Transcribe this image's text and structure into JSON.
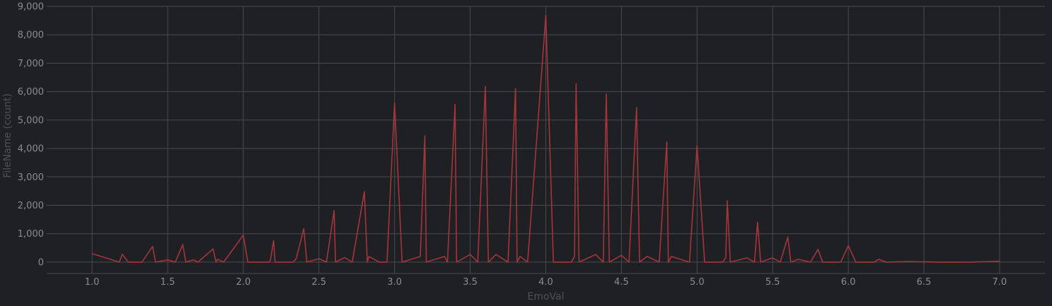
{
  "chart_data": {
    "type": "line",
    "title": "",
    "xlabel": "EmoVal",
    "ylabel": "FileName (count)",
    "xlim": [
      0.7,
      7.3
    ],
    "ylim": [
      -400,
      9000
    ],
    "x_ticks": [
      1.0,
      1.5,
      2.0,
      2.5,
      3.0,
      3.5,
      4.0,
      4.5,
      5.0,
      5.5,
      6.0,
      6.5,
      7.0
    ],
    "x_tick_labels": [
      "1.0",
      "1.5",
      "2.0",
      "2.5",
      "3.0",
      "3.5",
      "4.0",
      "4.5",
      "5.0",
      "5.5",
      "6.0",
      "6.5",
      "7.0"
    ],
    "y_ticks": [
      0,
      1000,
      2000,
      3000,
      4000,
      5000,
      6000,
      7000,
      8000,
      9000
    ],
    "y_tick_labels": [
      "0",
      "1,000",
      "2,000",
      "3,000",
      "4,000",
      "5,000",
      "6,000",
      "7,000",
      "8,000",
      "9,000"
    ],
    "grid": true,
    "series": [
      {
        "color": "#a3353b",
        "x": [
          1.0,
          1.18,
          1.2,
          1.24,
          1.33,
          1.4,
          1.42,
          1.5,
          1.55,
          1.6,
          1.62,
          1.67,
          1.7,
          1.8,
          1.82,
          1.83,
          1.87,
          2.0,
          2.03,
          2.17,
          2.18,
          2.2,
          2.21,
          2.33,
          2.35,
          2.4,
          2.42,
          2.5,
          2.55,
          2.6,
          2.61,
          2.67,
          2.72,
          2.8,
          2.82,
          2.83,
          2.9,
          2.95,
          3.0,
          3.05,
          3.17,
          3.2,
          3.21,
          3.33,
          3.35,
          3.4,
          3.41,
          3.5,
          3.55,
          3.6,
          3.62,
          3.67,
          3.75,
          3.8,
          3.81,
          3.83,
          3.88,
          4.0,
          4.05,
          4.17,
          4.19,
          4.2,
          4.22,
          4.33,
          4.38,
          4.4,
          4.42,
          4.5,
          4.55,
          4.6,
          4.62,
          4.67,
          4.75,
          4.8,
          4.81,
          4.83,
          4.95,
          5.0,
          5.05,
          5.17,
          5.19,
          5.2,
          5.22,
          5.33,
          5.38,
          5.4,
          5.42,
          5.5,
          5.55,
          5.6,
          5.62,
          5.67,
          5.75,
          5.8,
          5.83,
          5.95,
          6.0,
          6.05,
          6.17,
          6.2,
          6.25,
          6.4,
          6.6,
          6.8,
          7.0
        ],
        "values": [
          300,
          0,
          280,
          0,
          0,
          550,
          0,
          80,
          0,
          620,
          0,
          80,
          0,
          460,
          0,
          100,
          0,
          950,
          0,
          0,
          80,
          760,
          0,
          0,
          130,
          1180,
          0,
          120,
          0,
          1810,
          0,
          160,
          0,
          2480,
          0,
          200,
          0,
          0,
          5600,
          0,
          200,
          4440,
          0,
          200,
          0,
          5550,
          0,
          270,
          0,
          6180,
          0,
          270,
          0,
          6100,
          0,
          200,
          0,
          8690,
          0,
          0,
          200,
          6280,
          0,
          270,
          0,
          5920,
          0,
          240,
          0,
          5440,
          0,
          200,
          0,
          4230,
          0,
          200,
          0,
          4100,
          0,
          0,
          160,
          2160,
          0,
          150,
          0,
          1400,
          0,
          150,
          0,
          880,
          0,
          100,
          0,
          450,
          0,
          0,
          580,
          0,
          0,
          100,
          0,
          20,
          0,
          0,
          30
        ]
      }
    ]
  }
}
